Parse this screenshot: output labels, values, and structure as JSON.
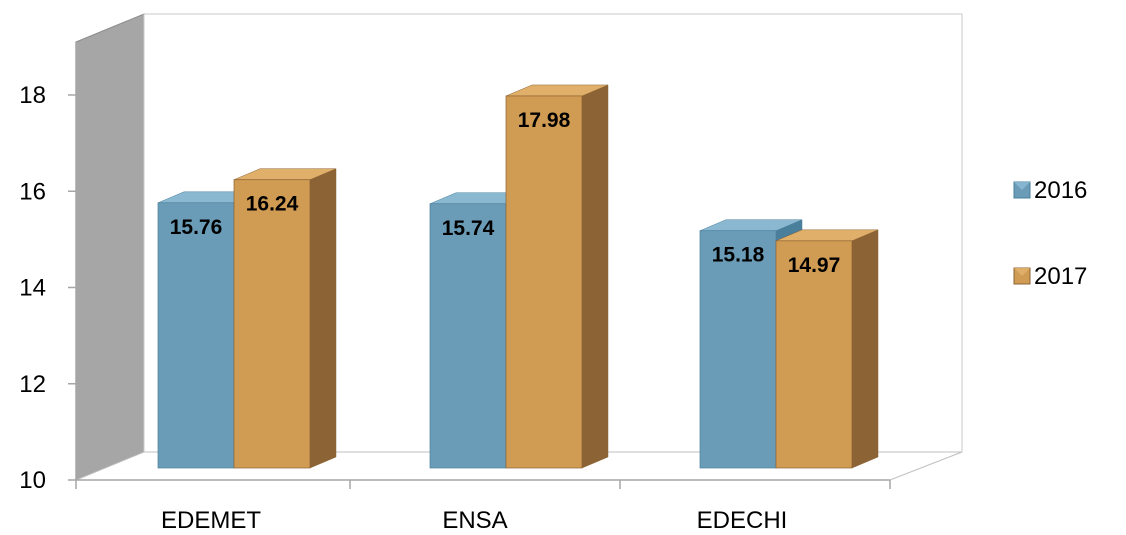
{
  "chart_data": {
    "type": "bar",
    "categories": [
      "EDEMET",
      "ENSA",
      "EDECHI"
    ],
    "series": [
      {
        "name": "2016",
        "values": [
          15.76,
          15.74,
          15.18
        ]
      },
      {
        "name": "2017",
        "values": [
          16.24,
          17.98,
          14.97
        ]
      }
    ],
    "data_labels": [
      [
        "15.76",
        "15.74",
        "15.18"
      ],
      [
        "16.24",
        "17.98",
        "14.97"
      ]
    ],
    "title": "",
    "xlabel": "",
    "ylabel": "",
    "ylim": [
      10,
      18
    ],
    "yticks": [
      "10",
      "12",
      "14",
      "16",
      "18"
    ],
    "grid": false,
    "legend_position": "right",
    "colors": {
      "2016": {
        "front": "#6b9cb7",
        "side": "#4a7f9c",
        "top": "#8ab8d1"
      },
      "2017": {
        "front": "#d09b52",
        "side": "#8c6334",
        "top": "#e0b06a"
      },
      "back_wall": "#ffffff",
      "side_wall": "#a6a6a6",
      "floor": "#ffffff",
      "axis": "#a6a6a6"
    }
  }
}
